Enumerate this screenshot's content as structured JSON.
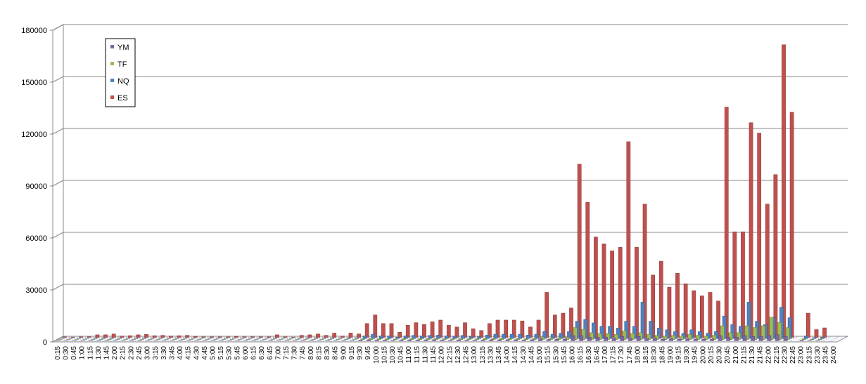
{
  "chart_data": {
    "type": "bar3d",
    "categories": [
      "0:15",
      "0:30",
      "0:45",
      "1:00",
      "1:15",
      "1:30",
      "1:45",
      "2:00",
      "2:15",
      "2:30",
      "2:45",
      "3:00",
      "3:15",
      "3:30",
      "3:45",
      "4:00",
      "4:15",
      "4:30",
      "4:45",
      "5:00",
      "5:15",
      "5:30",
      "5:45",
      "6:00",
      "6:15",
      "6:30",
      "6:45",
      "7:00",
      "7:15",
      "7:30",
      "7:45",
      "8:00",
      "8:15",
      "8:30",
      "8:45",
      "9:00",
      "9:15",
      "9:30",
      "9:45",
      "10:00",
      "10:15",
      "10:30",
      "10:45",
      "11:00",
      "11:15",
      "11:30",
      "11:45",
      "12:00",
      "12:15",
      "12:30",
      "12:45",
      "13:00",
      "13:15",
      "13:30",
      "13:45",
      "14:00",
      "14:15",
      "14:30",
      "14:45",
      "15:00",
      "15:15",
      "15:30",
      "15:45",
      "16:00",
      "16:15",
      "16:30",
      "16:45",
      "17:00",
      "17:15",
      "17:30",
      "17:45",
      "18:00",
      "18:15",
      "18:30",
      "18:45",
      "19:00",
      "19:15",
      "19:30",
      "19:45",
      "20:00",
      "20:15",
      "20:30",
      "20:45",
      "21:00",
      "21:15",
      "21:30",
      "21:45",
      "22:00",
      "22:15",
      "22:30",
      "22:45",
      "23:00",
      "23:15",
      "23:30",
      "23:45",
      "24:00"
    ],
    "series": [
      {
        "name": "YM",
        "color": "#8064a2",
        "values": [
          50,
          50,
          50,
          50,
          100,
          100,
          100,
          50,
          50,
          100,
          100,
          50,
          50,
          50,
          50,
          50,
          50,
          50,
          50,
          50,
          50,
          50,
          50,
          50,
          50,
          50,
          100,
          50,
          50,
          50,
          100,
          100,
          50,
          100,
          50,
          100,
          100,
          400,
          600,
          400,
          400,
          200,
          400,
          500,
          400,
          500,
          600,
          400,
          300,
          500,
          300,
          300,
          500,
          600,
          600,
          600,
          600,
          400,
          600,
          1200,
          700,
          800,
          1000,
          3000,
          3000,
          2000,
          2000,
          2000,
          1500,
          2500,
          1500,
          2500,
          1500,
          1500,
          1000,
          1200,
          1000,
          1200,
          1000,
          1000,
          1000,
          3000,
          2000,
          2000,
          3000,
          2500,
          2500,
          3000,
          3500,
          2500,
          0,
          300,
          100,
          100,
          0,
          0
        ]
      },
      {
        "name": "TF",
        "color": "#9bbb59",
        "values": [
          100,
          100,
          100,
          100,
          100,
          100,
          100,
          100,
          100,
          100,
          100,
          100,
          100,
          100,
          100,
          100,
          100,
          100,
          100,
          100,
          100,
          100,
          100,
          100,
          100,
          100,
          100,
          100,
          100,
          100,
          100,
          100,
          100,
          100,
          100,
          100,
          100,
          500,
          800,
          500,
          500,
          300,
          500,
          600,
          500,
          600,
          700,
          500,
          400,
          600,
          400,
          400,
          600,
          700,
          700,
          700,
          700,
          500,
          700,
          1500,
          800,
          1000,
          1500,
          7000,
          6000,
          4000,
          3500,
          3500,
          3000,
          5000,
          3500,
          4000,
          3000,
          2500,
          2000,
          2500,
          2000,
          3000,
          2500,
          2000,
          2500,
          8000,
          4000,
          4000,
          8000,
          7000,
          8000,
          13000,
          10000,
          7000,
          0,
          500,
          200,
          300,
          0,
          0
        ]
      },
      {
        "name": "NQ",
        "color": "#4f81bd",
        "values": [
          100,
          100,
          100,
          100,
          300,
          300,
          300,
          200,
          200,
          300,
          300,
          200,
          200,
          200,
          200,
          200,
          100,
          100,
          100,
          100,
          100,
          100,
          100,
          100,
          100,
          100,
          300,
          100,
          100,
          200,
          300,
          300,
          300,
          400,
          200,
          400,
          400,
          1500,
          2500,
          1500,
          1500,
          800,
          1500,
          1800,
          1500,
          1800,
          2000,
          1500,
          1300,
          1800,
          1200,
          1000,
          2000,
          2500,
          2500,
          2500,
          2500,
          2000,
          2500,
          4000,
          2500,
          3000,
          4000,
          10000,
          11000,
          9000,
          7000,
          7000,
          6000,
          10000,
          7000,
          21000,
          10000,
          6000,
          5000,
          4000,
          3000,
          5000,
          4000,
          3000,
          4000,
          13000,
          8000,
          7000,
          21000,
          10000,
          8000,
          12000,
          18000,
          12000,
          0,
          1500,
          500,
          800,
          0,
          0
        ]
      },
      {
        "name": "ES",
        "color": "#c0504d",
        "values": [
          300,
          200,
          300,
          400,
          1500,
          1500,
          2000,
          800,
          1000,
          1500,
          1800,
          1000,
          1200,
          800,
          1000,
          1200,
          500,
          300,
          300,
          300,
          300,
          500,
          300,
          300,
          300,
          300,
          1500,
          300,
          200,
          1200,
          1500,
          2000,
          1200,
          2500,
          800,
          2500,
          2000,
          8000,
          13000,
          8000,
          8000,
          3000,
          7000,
          8500,
          7500,
          9000,
          10000,
          7000,
          6000,
          8500,
          5000,
          4000,
          8000,
          10000,
          10000,
          10000,
          9500,
          6000,
          10000,
          26000,
          13000,
          14000,
          17000,
          100000,
          78000,
          58000,
          54000,
          50000,
          52000,
          113000,
          52000,
          77000,
          36000,
          44000,
          29000,
          37000,
          31000,
          27000,
          24000,
          26000,
          21000,
          133000,
          61000,
          61000,
          124000,
          118000,
          77000,
          94000,
          169000,
          130000,
          0,
          14000,
          4500,
          5500,
          0,
          0
        ]
      }
    ],
    "ylim": [
      0,
      180000
    ],
    "yticks": [
      0,
      30000,
      60000,
      90000,
      120000,
      150000,
      180000
    ],
    "grid": true,
    "legend": "top-left"
  }
}
